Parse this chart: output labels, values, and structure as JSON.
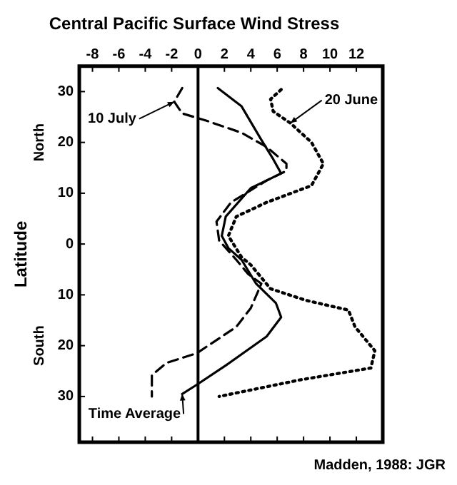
{
  "chart_data": {
    "type": "line",
    "title": "Central Pacific Surface Wind Stress",
    "ylabel": "Latitude",
    "xlim": [
      -9,
      14
    ],
    "xticks": [
      -8,
      -6,
      -4,
      -2,
      0,
      2,
      4,
      6,
      8,
      10,
      12
    ],
    "ylim": [
      -39,
      35
    ],
    "yticks": [
      {
        "value": 30,
        "label": "30"
      },
      {
        "value": 20,
        "label": "20"
      },
      {
        "value": 10,
        "label": "10"
      },
      {
        "value": 0,
        "label": "0"
      },
      {
        "value": -10,
        "label": "10"
      },
      {
        "value": -20,
        "label": "20"
      },
      {
        "value": -30,
        "label": "30"
      }
    ],
    "legend": false,
    "marker": "none",
    "series": [
      {
        "color": "#000000",
        "line_style": "solid",
        "x": [
          1.5,
          3.3,
          4.8,
          5.7,
          6.3,
          4.0,
          2.1,
          1.8,
          2.3,
          3.3,
          4.4,
          5.9,
          6.3,
          5.2,
          2.1,
          -0.1,
          -1.2
        ],
        "values": [
          30.7,
          27.1,
          20.5,
          16.7,
          13.9,
          11,
          5.4,
          1.6,
          -0.8,
          -3.1,
          -7.8,
          -11.6,
          -14.4,
          -18.2,
          -23.9,
          -27.7,
          -29.5
        ]
      },
      {
        "color": "#000000",
        "line_style": "dashed",
        "x": [
          -1.2,
          -1.8,
          -1.2,
          0.6,
          3.3,
          5.2,
          6.7,
          6.7,
          5.2,
          2.5,
          1.4,
          1.6,
          2.9,
          3.8,
          4.8,
          4.0,
          2.9,
          -0.1,
          -2.4,
          -3.5,
          -3.5
        ],
        "values": [
          30.7,
          28,
          25.7,
          24.3,
          21.9,
          19.1,
          15.8,
          14.4,
          12.5,
          8.2,
          4.4,
          0.7,
          -3.1,
          -5.9,
          -7.8,
          -12.6,
          -16.3,
          -21.5,
          -23.4,
          -25.8,
          -30
        ]
      },
      {
        "color": "#000000",
        "line_style": "dotted",
        "x": [
          6.3,
          5.5,
          5.7,
          7.0,
          8.6,
          9.5,
          8.6,
          5.2,
          2.9,
          2.3,
          3.3,
          4.0,
          5.5,
          8.2,
          11.4,
          11.9,
          13.4,
          13.1,
          7.8,
          1.6
        ],
        "values": [
          30.4,
          28.5,
          26.1,
          23.8,
          20,
          15.8,
          11.5,
          8.2,
          5.4,
          1.6,
          -2.6,
          -4.1,
          -8.8,
          -11.1,
          -13,
          -16.3,
          -21,
          -24.4,
          -26.7,
          -30
        ]
      }
    ],
    "ref_lines": [
      {
        "axis": "x",
        "value": 0,
        "color": "#000000",
        "line_style": "solid"
      }
    ],
    "annotations": [
      {
        "text": "10 July",
        "x": -1.8,
        "y": 28
      },
      {
        "text": "20 June",
        "x": 7.0,
        "y": 23.8
      },
      {
        "text": "Time Average",
        "x": -1.2,
        "y": -29.5
      },
      "North",
      "South",
      "Madden, 1988: JGR"
    ]
  }
}
